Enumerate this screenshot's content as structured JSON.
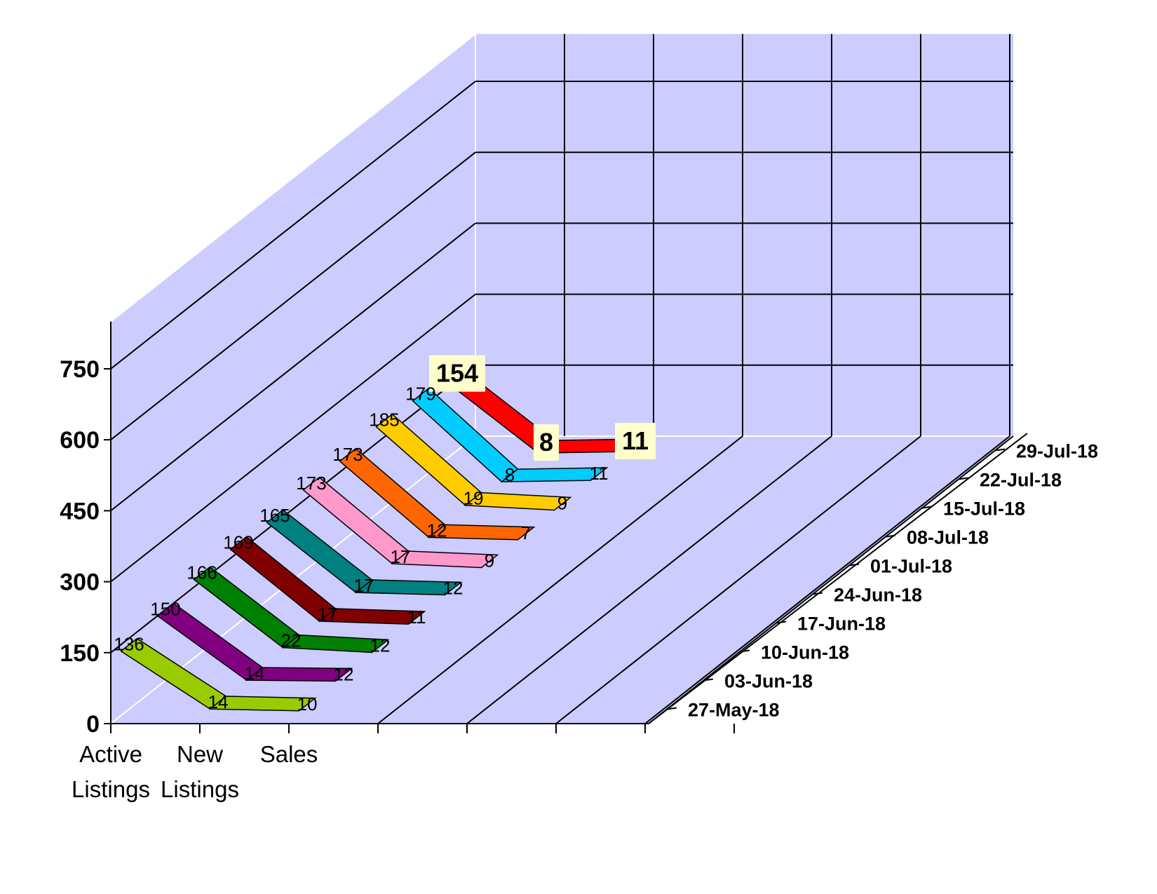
{
  "chart_data": {
    "type": "line",
    "style": "3d-ribbon",
    "categories": [
      [
        "Active",
        "Listings"
      ],
      [
        "New",
        "Listings"
      ],
      [
        "Sales"
      ]
    ],
    "series": [
      {
        "name": "27-May-18",
        "values": [
          136,
          14,
          10
        ],
        "color": "#99cc00"
      },
      {
        "name": "03-Jun-18",
        "values": [
          150,
          14,
          12
        ],
        "color": "#800080"
      },
      {
        "name": "10-Jun-18",
        "values": [
          166,
          22,
          12
        ],
        "color": "#008000"
      },
      {
        "name": "17-Jun-18",
        "values": [
          169,
          17,
          11
        ],
        "color": "#800000"
      },
      {
        "name": "24-Jun-18",
        "values": [
          165,
          17,
          12
        ],
        "color": "#008080"
      },
      {
        "name": "01-Jul-18",
        "values": [
          173,
          17,
          9
        ],
        "color": "#ff99cc"
      },
      {
        "name": "08-Jul-18",
        "values": [
          173,
          12,
          7
        ],
        "color": "#ff6600"
      },
      {
        "name": "15-Jul-18",
        "values": [
          185,
          19,
          9
        ],
        "color": "#ffcc00"
      },
      {
        "name": "22-Jul-18",
        "values": [
          179,
          8,
          11
        ],
        "color": "#00ccff"
      },
      {
        "name": "29-Jul-18",
        "values": [
          154,
          8,
          11
        ],
        "color": "#ff0000"
      }
    ],
    "highlighted_series": "29-Jul-18",
    "yticks": [
      0,
      150,
      300,
      450,
      600,
      750
    ],
    "ylim": [
      0,
      850
    ],
    "grid": true,
    "wall_color": "#ccccff"
  }
}
